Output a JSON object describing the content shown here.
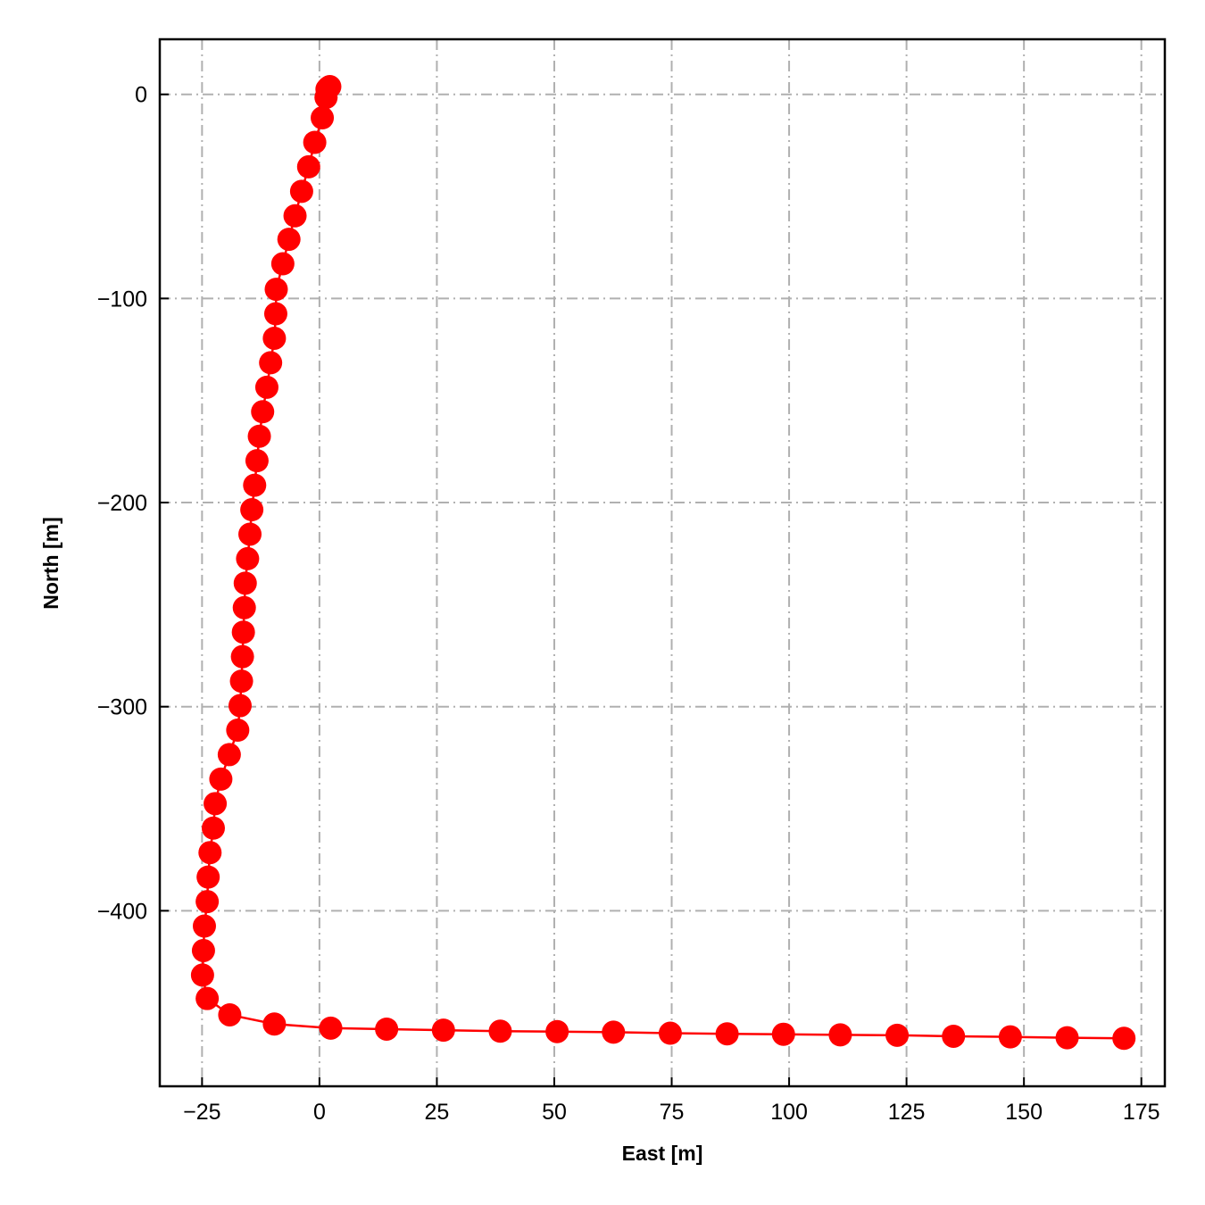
{
  "chart_data": {
    "type": "line",
    "title": "",
    "xlabel": "East [m]",
    "ylabel": "North [m]",
    "xlim": [
      -34,
      180
    ],
    "ylim": [
      -486,
      27
    ],
    "x_ticks": [
      -25,
      0,
      25,
      50,
      75,
      100,
      125,
      150,
      175
    ],
    "x_tick_labels": [
      "−25",
      "0",
      "25",
      "50",
      "75",
      "100",
      "125",
      "150",
      "175"
    ],
    "y_ticks": [
      0,
      -100,
      -200,
      -300,
      -400
    ],
    "y_tick_labels": [
      "0",
      "−100",
      "−200",
      "−300",
      "−400"
    ],
    "grid": true,
    "grid_style": "dash-dot",
    "colors": {
      "series": "#ff0000",
      "grid": "#b0b0b0",
      "axes": "#000000"
    },
    "series": [
      {
        "marker": "circle",
        "points": [
          [
            2.2,
            3.8
          ],
          [
            2.0,
            3.5
          ],
          [
            1.8,
            3.0
          ],
          [
            1.6,
            2.5
          ],
          [
            1.4,
            -1.5
          ],
          [
            0.6,
            -11.5
          ],
          [
            -1.0,
            -23.5
          ],
          [
            -2.3,
            -35.5
          ],
          [
            -3.8,
            -47.5
          ],
          [
            -5.2,
            -59.5
          ],
          [
            -6.5,
            -71.0
          ],
          [
            -7.8,
            -83.0
          ],
          [
            -9.2,
            -95.5
          ],
          [
            -9.3,
            -107.5
          ],
          [
            -9.6,
            -119.5
          ],
          [
            -10.4,
            -131.5
          ],
          [
            -11.2,
            -143.5
          ],
          [
            -12.1,
            -155.5
          ],
          [
            -12.8,
            -167.5
          ],
          [
            -13.3,
            -179.5
          ],
          [
            -13.8,
            -191.5
          ],
          [
            -14.4,
            -203.5
          ],
          [
            -14.8,
            -215.5
          ],
          [
            -15.3,
            -227.5
          ],
          [
            -15.8,
            -239.5
          ],
          [
            -16.0,
            -251.5
          ],
          [
            -16.2,
            -263.5
          ],
          [
            -16.4,
            -275.5
          ],
          [
            -16.6,
            -287.5
          ],
          [
            -16.9,
            -299.5
          ],
          [
            -17.4,
            -311.5
          ],
          [
            -19.2,
            -323.5
          ],
          [
            -21.0,
            -335.5
          ],
          [
            -22.2,
            -347.5
          ],
          [
            -22.6,
            -359.5
          ],
          [
            -23.3,
            -371.5
          ],
          [
            -23.7,
            -383.5
          ],
          [
            -23.9,
            -395.5
          ],
          [
            -24.5,
            -407.5
          ],
          [
            -24.7,
            -419.5
          ],
          [
            -24.9,
            -431.5
          ],
          [
            -23.9,
            -443.0
          ],
          [
            -19.1,
            -451.0
          ],
          [
            -9.6,
            -455.5
          ],
          [
            2.4,
            -457.5
          ],
          [
            14.3,
            -458.0
          ],
          [
            26.4,
            -458.5
          ],
          [
            38.5,
            -459.0
          ],
          [
            50.6,
            -459.2
          ],
          [
            62.6,
            -459.5
          ],
          [
            74.7,
            -460.0
          ],
          [
            86.8,
            -460.3
          ],
          [
            98.8,
            -460.5
          ],
          [
            110.9,
            -460.8
          ],
          [
            123.0,
            -461.0
          ],
          [
            135.0,
            -461.5
          ],
          [
            147.1,
            -461.8
          ],
          [
            159.2,
            -462.2
          ],
          [
            171.3,
            -462.5
          ]
        ]
      }
    ]
  }
}
